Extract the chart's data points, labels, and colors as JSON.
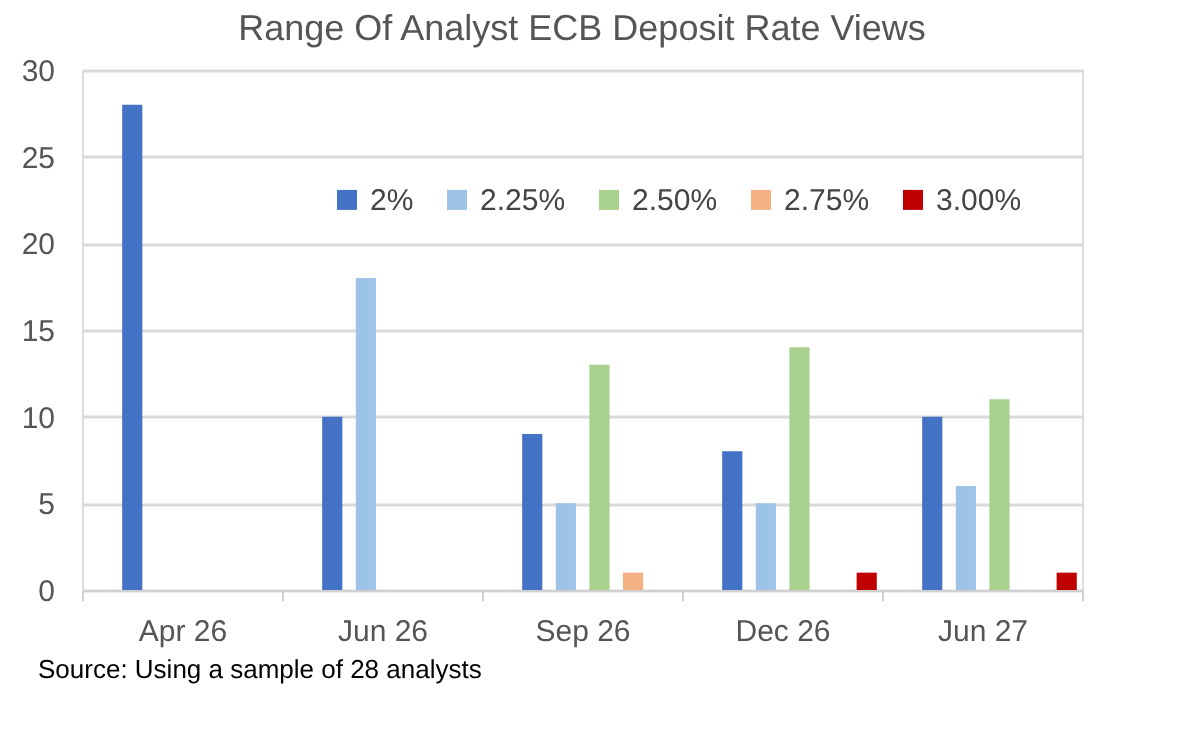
{
  "chart_data": {
    "type": "bar",
    "title": "Range Of Analyst ECB Deposit Rate Views",
    "categories": [
      "Apr 26",
      "Jun 26",
      "Sep 26",
      "Dec 26",
      "Jun 27"
    ],
    "series": [
      {
        "name": "2%",
        "color": "#4472c4",
        "values": [
          28,
          10,
          9,
          8,
          10
        ]
      },
      {
        "name": "2.25%",
        "color": "#9dc3e6",
        "values": [
          0,
          18,
          5,
          5,
          6
        ]
      },
      {
        "name": "2.50%",
        "color": "#a9d18e",
        "values": [
          0,
          0,
          13,
          14,
          11
        ]
      },
      {
        "name": "2.75%",
        "color": "#f4b183",
        "values": [
          0,
          0,
          1,
          0,
          0
        ]
      },
      {
        "name": "3.00%",
        "color": "#c00000",
        "values": [
          0,
          0,
          0,
          1,
          1
        ]
      }
    ],
    "ylim": [
      0,
      30
    ],
    "yticks": [
      0,
      5,
      10,
      15,
      20,
      25,
      30
    ],
    "grid": "y",
    "legend": "top",
    "annotations": [
      "Source: Using a sample of 28 analysts"
    ]
  }
}
